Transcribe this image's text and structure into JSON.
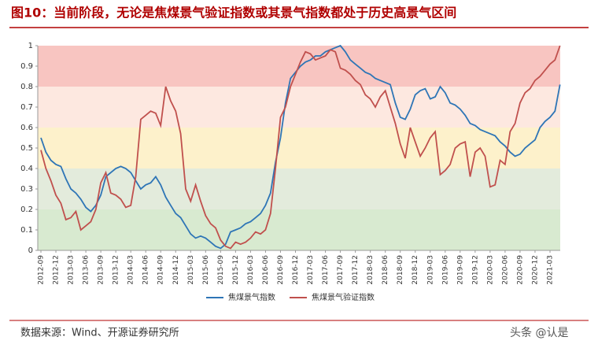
{
  "chart_data": {
    "type": "line",
    "title": "图10：当前阶段，无论是焦煤景气验证指数或其景气指数都处于历史高景气区间",
    "source": "数据来源：Wind、开源证券研究所",
    "watermark": "头条 @认是",
    "categories": [
      "2012-09",
      null,
      null,
      "2012-12",
      null,
      null,
      "2013-03",
      null,
      null,
      "2013-06",
      null,
      null,
      "2013-09",
      null,
      null,
      "2013-12",
      null,
      null,
      "2014-03",
      null,
      null,
      "2014-06",
      null,
      null,
      "2014-09",
      null,
      null,
      "2014-12",
      null,
      null,
      "2015-03",
      null,
      null,
      "2015-06",
      null,
      null,
      "2015-09",
      null,
      null,
      "2015-12",
      null,
      null,
      "2016-03",
      null,
      null,
      "2016-06",
      null,
      null,
      "2016-09",
      null,
      null,
      "2016-12",
      null,
      null,
      "2017-03",
      null,
      null,
      "2017-06",
      null,
      null,
      "2017-09",
      null,
      null,
      "2017-12",
      null,
      null,
      "2018-03",
      null,
      null,
      "2018-06",
      null,
      null,
      "2018-09",
      null,
      null,
      "2018-12",
      null,
      null,
      "2019-03",
      null,
      null,
      "2019-06",
      null,
      null,
      "2019-09",
      null,
      null,
      "2019-12",
      null,
      null,
      "2020-03",
      null,
      null,
      "2020-06",
      null,
      null,
      "2020-09",
      null,
      null,
      "2020-12",
      null,
      null,
      "2021-03",
      null,
      null
    ],
    "series": [
      {
        "name": "焦煤景气指数",
        "color": "#2e75b6",
        "values": [
          0.55,
          0.48,
          0.44,
          0.42,
          0.41,
          0.35,
          0.3,
          0.28,
          0.25,
          0.21,
          0.19,
          0.22,
          0.27,
          0.36,
          0.38,
          0.4,
          0.41,
          0.4,
          0.38,
          0.34,
          0.3,
          0.32,
          0.33,
          0.36,
          0.32,
          0.26,
          0.22,
          0.18,
          0.16,
          0.12,
          0.08,
          0.06,
          0.07,
          0.06,
          0.04,
          0.02,
          0.01,
          0.03,
          0.09,
          0.1,
          0.11,
          0.13,
          0.14,
          0.16,
          0.18,
          0.22,
          0.28,
          0.43,
          0.55,
          0.72,
          0.84,
          0.87,
          0.9,
          0.92,
          0.93,
          0.95,
          0.95,
          0.97,
          0.98,
          0.99,
          1.0,
          0.97,
          0.93,
          0.91,
          0.89,
          0.87,
          0.86,
          0.84,
          0.83,
          0.82,
          0.81,
          0.72,
          0.65,
          0.64,
          0.69,
          0.76,
          0.78,
          0.79,
          0.74,
          0.75,
          0.8,
          0.77,
          0.72,
          0.71,
          0.69,
          0.66,
          0.62,
          0.61,
          0.59,
          0.58,
          0.57,
          0.56,
          0.53,
          0.51,
          0.48,
          0.46,
          0.47,
          0.5,
          0.52,
          0.54,
          0.6,
          0.63,
          0.65,
          0.68,
          0.81
        ]
      },
      {
        "name": "焦煤景气验证指数",
        "color": "#c0504d",
        "values": [
          0.49,
          0.4,
          0.34,
          0.27,
          0.23,
          0.15,
          0.16,
          0.19,
          0.1,
          0.12,
          0.14,
          0.2,
          0.33,
          0.38,
          0.28,
          0.27,
          0.25,
          0.21,
          0.22,
          0.36,
          0.64,
          0.66,
          0.68,
          0.67,
          0.61,
          0.8,
          0.73,
          0.68,
          0.57,
          0.3,
          0.24,
          0.32,
          0.24,
          0.17,
          0.13,
          0.11,
          0.05,
          0.02,
          0.01,
          0.04,
          0.03,
          0.04,
          0.06,
          0.09,
          0.08,
          0.1,
          0.18,
          0.4,
          0.65,
          0.7,
          0.8,
          0.86,
          0.92,
          0.97,
          0.96,
          0.93,
          0.94,
          0.95,
          0.98,
          0.97,
          0.89,
          0.88,
          0.86,
          0.83,
          0.81,
          0.76,
          0.74,
          0.7,
          0.75,
          0.78,
          0.7,
          0.62,
          0.52,
          0.45,
          0.6,
          0.53,
          0.46,
          0.5,
          0.55,
          0.58,
          0.37,
          0.39,
          0.42,
          0.5,
          0.52,
          0.53,
          0.36,
          0.48,
          0.5,
          0.46,
          0.31,
          0.32,
          0.44,
          0.42,
          0.58,
          0.62,
          0.72,
          0.77,
          0.79,
          0.83,
          0.85,
          0.88,
          0.91,
          0.93,
          1.0
        ]
      }
    ],
    "ylim": [
      0,
      1
    ],
    "yticks": [
      0,
      0.1,
      0.2,
      0.3,
      0.4,
      0.5,
      0.6,
      0.7,
      0.8,
      0.9,
      1
    ],
    "bands": [
      {
        "from": 0,
        "to": 0.2,
        "color": "#d8ead0"
      },
      {
        "from": 0.2,
        "to": 0.4,
        "color": "#e3ebdc"
      },
      {
        "from": 0.4,
        "to": 0.6,
        "color": "#fdf1cb"
      },
      {
        "from": 0.6,
        "to": 0.8,
        "color": "#fde8e0"
      },
      {
        "from": 0.8,
        "to": 1,
        "color": "#f8c5c1"
      }
    ],
    "legend": "bottom"
  }
}
